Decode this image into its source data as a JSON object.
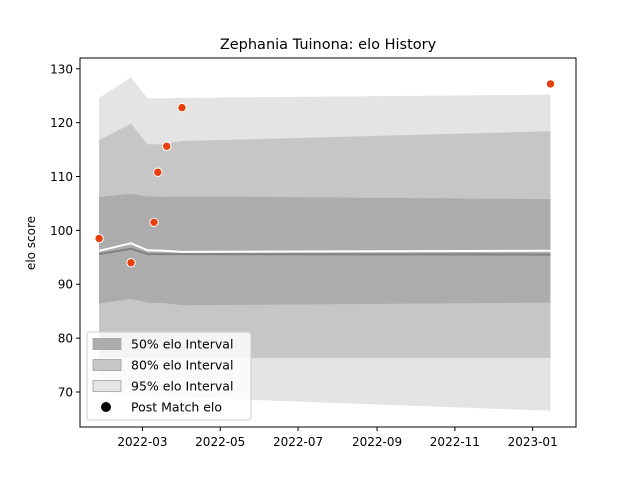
{
  "chart_data": {
    "type": "line",
    "title": "Zephania Tuinona: elo History",
    "xlabel": "",
    "ylabel": "elo score",
    "x_ticks": [
      "2022-03",
      "2022-05",
      "2022-07",
      "2022-09",
      "2022-11",
      "2023-01"
    ],
    "y_ticks": [
      70,
      80,
      90,
      100,
      110,
      120,
      130
    ],
    "xlim": [
      "2022-01-11",
      "2023-02-04"
    ],
    "ylim": [
      63.5,
      132
    ],
    "grid": false,
    "legend_position": "lower-left",
    "legend": [
      {
        "label": "50% elo Interval",
        "kind": "band50"
      },
      {
        "label": "80% elo Interval",
        "kind": "band80"
      },
      {
        "label": "95% elo Interval",
        "kind": "band95"
      },
      {
        "label": "Post Match elo",
        "kind": "marker"
      }
    ],
    "colors": {
      "band50": "#acacac",
      "band80": "#c6c6c6",
      "band95": "#e4e4e4",
      "mean_line": "#ffffff",
      "median_line": "#808080",
      "marker": "#e8400c"
    },
    "bands": {
      "dates": [
        "2022-01-26",
        "2022-02-20",
        "2022-03-05",
        "2022-03-18",
        "2022-04-01",
        "2023-01-15"
      ],
      "p95": {
        "lower": [
          70.0,
          69.6,
          69.3,
          69.2,
          69.0,
          66.5
        ],
        "upper": [
          124.6,
          128.4,
          124.5,
          124.5,
          124.6,
          125.2
        ]
      },
      "p80": {
        "lower": [
          76.3,
          76.3,
          76.3,
          76.3,
          76.3,
          76.3
        ],
        "upper": [
          116.8,
          119.8,
          116.0,
          116.0,
          116.6,
          118.4
        ]
      },
      "p50": {
        "lower": [
          86.4,
          87.3,
          86.6,
          86.5,
          86.1,
          86.6
        ],
        "upper": [
          106.2,
          106.8,
          106.3,
          106.2,
          106.3,
          105.8
        ]
      },
      "mean": [
        96.2,
        97.6,
        96.3,
        96.2,
        96.0,
        96.2
      ],
      "median": [
        95.6,
        96.6,
        95.6,
        95.6,
        95.6,
        95.5
      ]
    },
    "series": [
      {
        "name": "Post Match elo",
        "x": [
          "2022-01-26",
          "2022-02-20",
          "2022-03-10",
          "2022-03-13",
          "2022-03-20",
          "2022-04-01",
          "2023-01-15"
        ],
        "y": [
          98.5,
          94.0,
          101.5,
          110.8,
          115.6,
          122.8,
          127.2
        ]
      }
    ]
  }
}
